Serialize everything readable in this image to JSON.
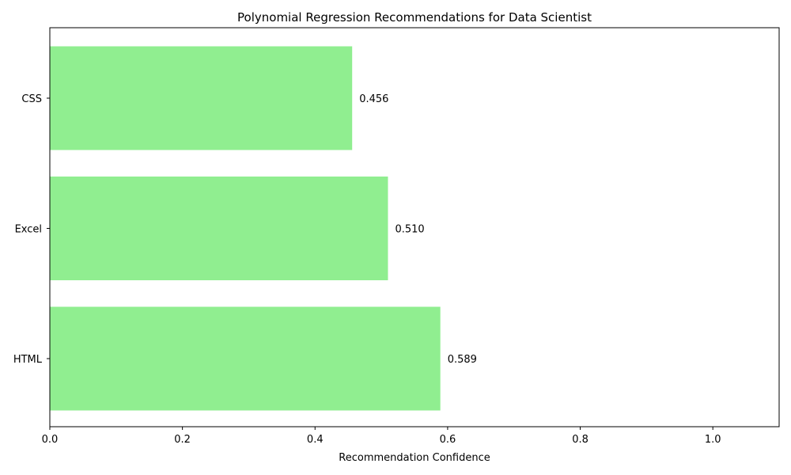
{
  "chart_data": {
    "type": "bar",
    "orientation": "horizontal",
    "title": "Polynomial Regression Recommendations for Data Scientist",
    "xlabel": "Recommendation Confidence",
    "ylabel": "",
    "categories": [
      "CSS",
      "Excel",
      "HTML"
    ],
    "values": [
      0.456,
      0.51,
      0.589
    ],
    "value_labels": [
      "0.456",
      "0.510",
      "0.589"
    ],
    "xlim": [
      0.0,
      1.1
    ],
    "xticks": [
      0.0,
      0.2,
      0.4,
      0.6,
      0.8,
      1.0
    ],
    "xtick_labels": [
      "0.0",
      "0.2",
      "0.4",
      "0.6",
      "0.8",
      "1.0"
    ],
    "grid": false,
    "bar_color": "#90ee90"
  }
}
